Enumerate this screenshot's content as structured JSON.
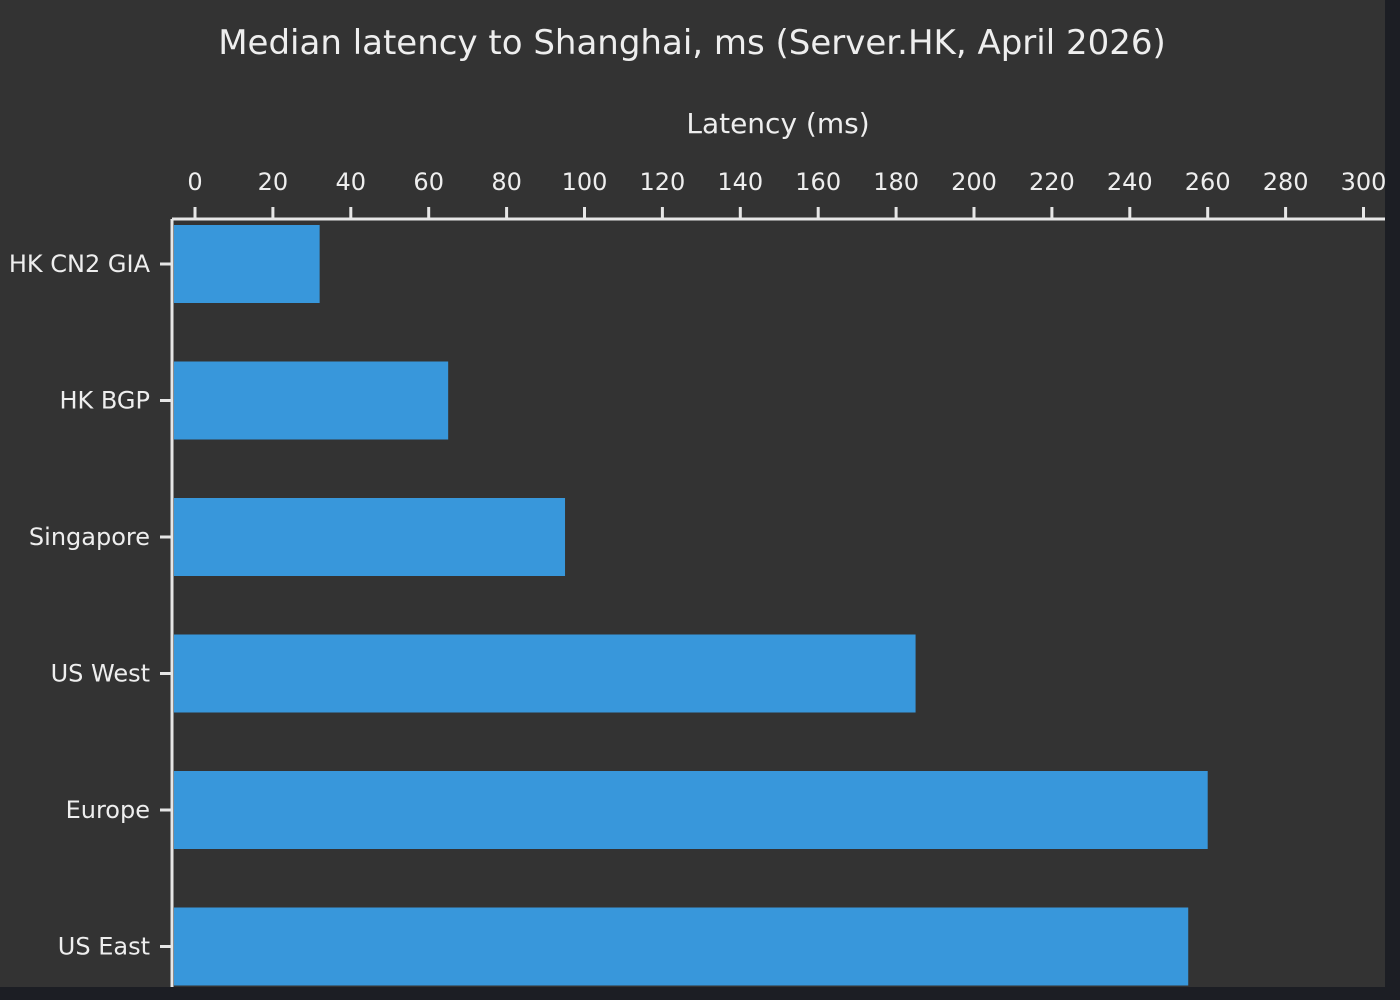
{
  "chart_data": {
    "type": "bar",
    "orientation": "horizontal",
    "title": "Median latency to Shanghai, ms (Server.HK, April 2026)",
    "xlabel": "Latency (ms)",
    "ylabel": "",
    "xlim": [
      0,
      300
    ],
    "xticks": [
      "0",
      "20",
      "40",
      "60",
      "80",
      "100",
      "120",
      "140",
      "160",
      "180",
      "200",
      "220",
      "240",
      "260",
      "280",
      "300"
    ],
    "x_axis_position": "top",
    "grid": false,
    "legend": "none",
    "categories": [
      "HK CN2 GIA",
      "HK BGP",
      "Singapore",
      "US West",
      "Europe",
      "US East"
    ],
    "values": [
      32,
      65,
      95,
      185,
      260,
      255
    ],
    "colors": {
      "bar": "#3897db",
      "background": "#333333",
      "axis": "#e6e6e6",
      "text": "#eeeeee"
    }
  }
}
